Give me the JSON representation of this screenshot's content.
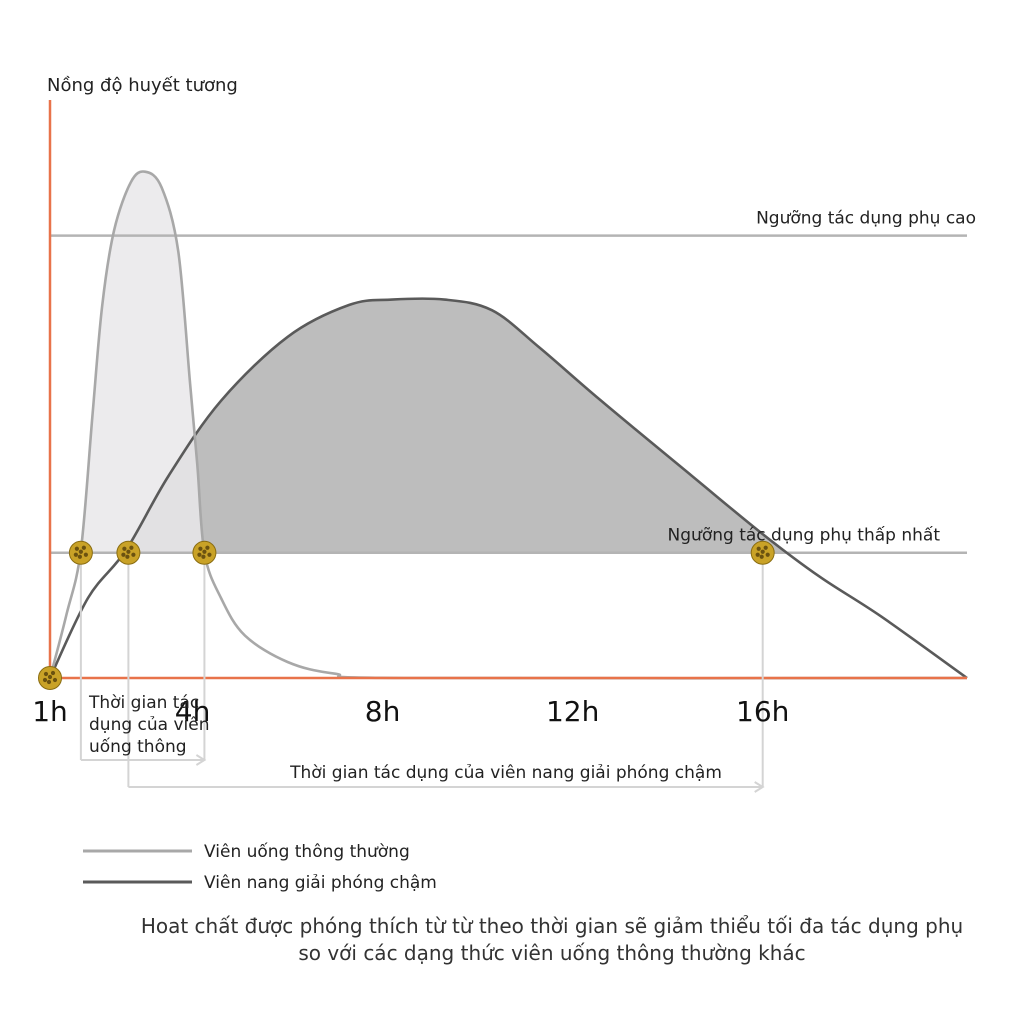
{
  "chart_data": {
    "type": "area",
    "ylabel": "Nồng độ huyết tương",
    "ticks": [
      {
        "x": 1,
        "label": "1h"
      },
      {
        "x": 4,
        "label": "4h"
      },
      {
        "x": 8,
        "label": "8h"
      },
      {
        "x": 12,
        "label": "12h"
      },
      {
        "x": 16,
        "label": "16h"
      }
    ],
    "xlim": [
      1,
      20.3
    ],
    "ylim": [
      0,
      100
    ],
    "grid": false,
    "thresholds": [
      {
        "label": "Ngưỡng tác dụng phụ cao",
        "y": 83
      },
      {
        "label": "Ngưỡng tác dụng phụ thấp nhất",
        "y": 23.5
      }
    ],
    "series": [
      {
        "name": "Viên uống thông thường",
        "color": "#a8a8a8",
        "fill": "#e9e8ea",
        "points": [
          [
            1,
            0
          ],
          [
            1.35,
            12
          ],
          [
            1.65,
            24
          ],
          [
            1.9,
            50
          ],
          [
            2.1,
            70
          ],
          [
            2.35,
            84
          ],
          [
            2.7,
            93
          ],
          [
            3.0,
            95
          ],
          [
            3.35,
            92
          ],
          [
            3.7,
            80
          ],
          [
            3.95,
            55
          ],
          [
            4.1,
            40
          ],
          [
            4.25,
            23.5
          ],
          [
            4.6,
            15
          ],
          [
            5.1,
            8
          ],
          [
            6.0,
            3
          ],
          [
            7.0,
            0.8
          ],
          [
            8.5,
            0
          ],
          [
            20.3,
            0
          ]
        ]
      },
      {
        "name": "Viên nang giải phóng chậm",
        "color": "#5a5a5a",
        "fill": "#bdbdbd",
        "points": [
          [
            1,
            0
          ],
          [
            1.8,
            15
          ],
          [
            2.6,
            24
          ],
          [
            3.5,
            38
          ],
          [
            4.6,
            52
          ],
          [
            6,
            64
          ],
          [
            7.3,
            70
          ],
          [
            8.2,
            71
          ],
          [
            9.3,
            71
          ],
          [
            10.3,
            69
          ],
          [
            11.3,
            62
          ],
          [
            12.6,
            52
          ],
          [
            14.5,
            38
          ],
          [
            16,
            27
          ],
          [
            17.2,
            19
          ],
          [
            18.5,
            11.5
          ],
          [
            20.3,
            0
          ]
        ]
      }
    ],
    "markers": [
      {
        "x": 1,
        "y": 0
      },
      {
        "x": 1.65,
        "y": 23.5
      },
      {
        "x": 2.65,
        "y": 23.5
      },
      {
        "x": 4.25,
        "y": 23.5
      },
      {
        "x": 16,
        "y": 23.5
      }
    ],
    "spans": [
      {
        "label_lines": [
          "Thời gian tác",
          "dụng của viên",
          "uống thông"
        ],
        "from": 1.65,
        "to": 4.25
      },
      {
        "label_lines": [
          "Thời gian tác dụng của viên nang giải phóng chậm"
        ],
        "from": 2.65,
        "to": 16
      }
    ]
  },
  "caption": [
    "Hoat chất được phóng thích từ từ theo thời gian sẽ giảm thiểu tối đa tác dụng phụ",
    "so với các dạng thức viên uống thông thường khác"
  ],
  "colors": {
    "axis": "#e8734a",
    "threshold": "#b4b4b4",
    "marker": "#c9a227",
    "span_line": "#d4d4d4"
  }
}
